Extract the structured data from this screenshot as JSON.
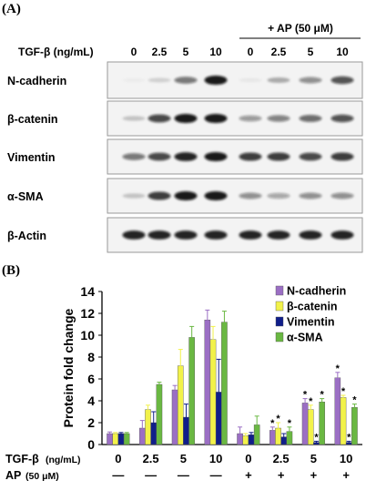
{
  "panels": {
    "a": "(A)",
    "b": "(B)"
  },
  "blot": {
    "ap_header": "+ AP (50 μM)",
    "tgf_label": "TGF-β (ng/mL)",
    "lanes": [
      "0",
      "2.5",
      "5",
      "10",
      "0",
      "2.5",
      "5",
      "10"
    ],
    "proteins": [
      {
        "name": "N-cadherin",
        "intensities": [
          0.03,
          0.15,
          0.55,
          0.95,
          0.05,
          0.3,
          0.45,
          0.7
        ]
      },
      {
        "name": "β-catenin",
        "intensities": [
          0.2,
          0.75,
          0.95,
          0.95,
          0.4,
          0.5,
          0.6,
          0.7
        ]
      },
      {
        "name": "Vimentin",
        "intensities": [
          0.55,
          0.75,
          0.9,
          0.95,
          0.8,
          0.8,
          0.75,
          0.8
        ]
      },
      {
        "name": "α-SMA",
        "intensities": [
          0.2,
          0.8,
          0.95,
          0.95,
          0.45,
          0.35,
          0.45,
          0.45
        ]
      },
      {
        "name": "β-Actin",
        "intensities": [
          0.9,
          0.9,
          0.9,
          0.9,
          0.9,
          0.9,
          0.9,
          0.9
        ]
      }
    ]
  },
  "chart_data": {
    "type": "bar",
    "ylabel": "Protein fold change",
    "ylim": [
      0,
      14
    ],
    "yticks": [
      "0",
      "2",
      "4",
      "6",
      "8",
      "10",
      "12",
      "14"
    ],
    "categories": [
      "0",
      "2.5",
      "5",
      "10",
      "0",
      "2.5",
      "5",
      "10"
    ],
    "row_labels": {
      "tgf": "TGF-β",
      "tgf_unit": "(ng/mL)",
      "ap": "AP",
      "ap_unit": "(50 μM)"
    },
    "ap_signs": [
      "—",
      "—",
      "—",
      "—",
      "+",
      "+",
      "+",
      "+"
    ],
    "legend_position": "top-right",
    "series": [
      {
        "name": "N-cadherin",
        "color": "#9b6fc4",
        "values": [
          1.0,
          1.5,
          5.0,
          11.4,
          1.0,
          1.3,
          3.8,
          6.1
        ],
        "errors": [
          0.15,
          0.7,
          0.4,
          0.9,
          0.6,
          0.3,
          0.4,
          0.5
        ],
        "stars": [
          false,
          false,
          false,
          false,
          false,
          true,
          true,
          true
        ]
      },
      {
        "name": "β-catenin",
        "color": "#f2f24a",
        "values": [
          1.0,
          3.2,
          7.2,
          9.6,
          0.8,
          1.5,
          3.2,
          4.3
        ],
        "errors": [
          0.1,
          0.4,
          1.5,
          1.2,
          0.2,
          0.5,
          0.4,
          0.2
        ],
        "stars": [
          false,
          false,
          false,
          false,
          false,
          true,
          true,
          true
        ]
      },
      {
        "name": "Vimentin",
        "color": "#101e8a",
        "values": [
          1.0,
          2.0,
          2.5,
          4.8,
          0.9,
          0.7,
          0.2,
          0.2
        ],
        "errors": [
          0.1,
          1.0,
          1.2,
          3.0,
          0.2,
          0.3,
          0.1,
          0.1
        ],
        "stars": [
          false,
          false,
          false,
          false,
          false,
          false,
          true,
          true
        ]
      },
      {
        "name": "α-SMA",
        "color": "#6ab842",
        "values": [
          1.0,
          5.5,
          9.8,
          11.2,
          1.8,
          1.2,
          3.9,
          3.4
        ],
        "errors": [
          0.1,
          0.2,
          1.0,
          1.0,
          0.8,
          0.4,
          0.3,
          0.3
        ],
        "stars": [
          false,
          false,
          false,
          false,
          false,
          true,
          true,
          true
        ]
      }
    ]
  }
}
